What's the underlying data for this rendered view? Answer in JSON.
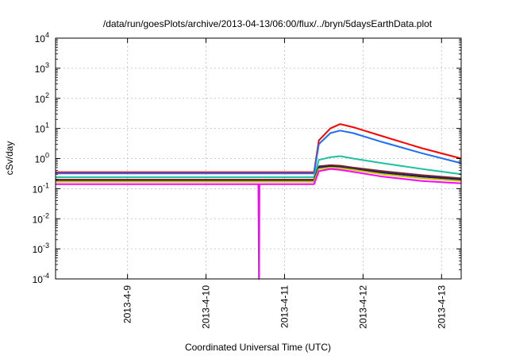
{
  "chart_data": {
    "type": "line",
    "title": "/data/run/goesPlots/archive/2013-04-13/06:00/flux/../bryn/5daysEarthData.plot",
    "xlabel": "Coordinated Universal Time (UTC)",
    "ylabel": "cSv/day",
    "x_type": "time",
    "xlim": [
      "2013-04-08T02:00",
      "2013-04-13T06:00"
    ],
    "xticks": [
      "2013-4-9",
      "2013-4-10",
      "2013-4-11",
      "2013-4-12",
      "2013-4-13"
    ],
    "y_scale": "log",
    "ylim": [
      0.0001,
      10000
    ],
    "ytick_exponents": [
      "-4",
      "-3",
      "-2",
      "-1",
      "0",
      "1",
      "2",
      "3",
      "4"
    ],
    "ytick_base": "10",
    "grid": true,
    "legend": "none",
    "series": [
      {
        "color": "#ff0000",
        "x": [
          "2013-04-08T02:00",
          "2013-04-09T00:00",
          "2013-04-10T00:00",
          "2013-04-11T00:00",
          "2013-04-11T09:00",
          "2013-04-11T10:30",
          "2013-04-11T14:00",
          "2013-04-11T17:00",
          "2013-04-11T21:00",
          "2013-04-12T06:00",
          "2013-04-12T18:00",
          "2013-04-13T06:00"
        ],
        "y": [
          0.35,
          0.35,
          0.35,
          0.35,
          0.35,
          4.0,
          10.0,
          14.0,
          11.0,
          5.5,
          2.2,
          1.0
        ]
      },
      {
        "color": "#1e6ef5",
        "x": [
          "2013-04-08T02:00",
          "2013-04-09T00:00",
          "2013-04-10T00:00",
          "2013-04-11T00:00",
          "2013-04-11T09:00",
          "2013-04-11T10:30",
          "2013-04-11T14:00",
          "2013-04-11T17:00",
          "2013-04-11T21:00",
          "2013-04-12T06:00",
          "2013-04-12T18:00",
          "2013-04-13T06:00"
        ],
        "y": [
          0.32,
          0.32,
          0.32,
          0.32,
          0.32,
          3.0,
          7.0,
          8.5,
          7.0,
          3.5,
          1.5,
          0.7
        ]
      },
      {
        "color": "#20c0a0",
        "x": [
          "2013-04-08T02:00",
          "2013-04-09T00:00",
          "2013-04-10T00:00",
          "2013-04-11T00:00",
          "2013-04-11T09:00",
          "2013-04-11T10:30",
          "2013-04-11T14:00",
          "2013-04-11T17:00",
          "2013-04-11T21:00",
          "2013-04-12T06:00",
          "2013-04-12T18:00",
          "2013-04-13T06:00"
        ],
        "y": [
          0.24,
          0.24,
          0.24,
          0.24,
          0.24,
          0.9,
          1.1,
          1.2,
          1.0,
          0.7,
          0.45,
          0.3
        ]
      },
      {
        "color": "#7b2a2a",
        "x": [
          "2013-04-08T02:00",
          "2013-04-09T00:00",
          "2013-04-10T00:00",
          "2013-04-11T00:00",
          "2013-04-11T09:00",
          "2013-04-11T10:30",
          "2013-04-11T14:00",
          "2013-04-11T17:00",
          "2013-04-11T21:00",
          "2013-04-12T06:00",
          "2013-04-12T18:00",
          "2013-04-13T06:00"
        ],
        "y": [
          0.2,
          0.2,
          0.2,
          0.2,
          0.2,
          0.55,
          0.6,
          0.58,
          0.5,
          0.38,
          0.28,
          0.22
        ]
      },
      {
        "color": "#1a1a66",
        "x": [
          "2013-04-08T02:00",
          "2013-04-09T00:00",
          "2013-04-10T00:00",
          "2013-04-11T00:00",
          "2013-04-11T09:00",
          "2013-04-11T10:30",
          "2013-04-11T14:00",
          "2013-04-11T17:00",
          "2013-04-11T21:00",
          "2013-04-12T06:00",
          "2013-04-12T18:00",
          "2013-04-13T06:00"
        ],
        "y": [
          0.18,
          0.18,
          0.18,
          0.18,
          0.18,
          0.5,
          0.55,
          0.52,
          0.45,
          0.34,
          0.25,
          0.2
        ]
      },
      {
        "color": "#c8c800",
        "x": [
          "2013-04-08T02:00",
          "2013-04-09T00:00",
          "2013-04-10T00:00",
          "2013-04-11T00:00",
          "2013-04-11T09:00",
          "2013-04-11T10:30",
          "2013-04-11T14:00",
          "2013-04-11T17:00",
          "2013-04-11T21:00",
          "2013-04-12T06:00",
          "2013-04-12T18:00",
          "2013-04-13T06:00"
        ],
        "y": [
          0.17,
          0.17,
          0.17,
          0.17,
          0.17,
          0.45,
          0.5,
          0.48,
          0.42,
          0.3,
          0.22,
          0.18
        ]
      },
      {
        "color": "#ff00ff",
        "x": [
          "2013-04-08T02:00",
          "2013-04-09T00:00",
          "2013-04-10T00:00",
          "2013-04-10T16:00",
          "2013-04-10T16:10",
          "2013-04-10T16:20",
          "2013-04-11T00:00",
          "2013-04-11T09:00",
          "2013-04-11T10:30",
          "2013-04-11T14:00",
          "2013-04-11T17:00",
          "2013-04-11T21:00",
          "2013-04-12T06:00",
          "2013-04-12T18:00",
          "2013-04-13T06:00"
        ],
        "y": [
          0.14,
          0.14,
          0.14,
          0.14,
          0.0001,
          0.14,
          0.14,
          0.14,
          0.38,
          0.45,
          0.42,
          0.36,
          0.25,
          0.18,
          0.15
        ]
      }
    ]
  }
}
